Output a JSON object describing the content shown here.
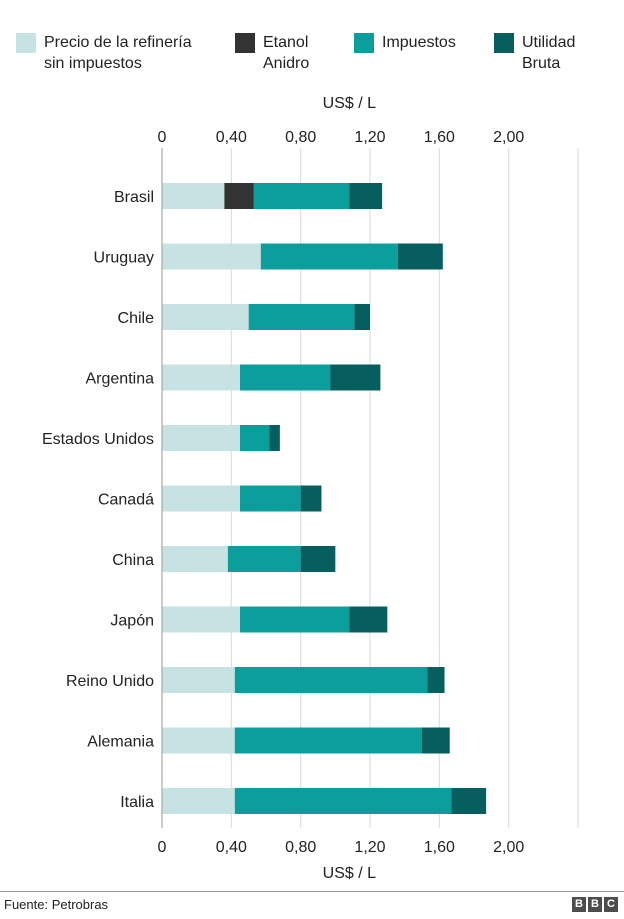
{
  "legend": [
    {
      "label": "Precio de la refinería\nsin impuestos",
      "color": "#c7e2e2"
    },
    {
      "label": "Etanol\nAnidro",
      "color": "#333333"
    },
    {
      "label": "Impuestos",
      "color": "#0c9e9c"
    },
    {
      "label": "Utilidad\nBruta",
      "color": "#065f5e"
    }
  ],
  "footer": {
    "source": "Fuente: Petrobras",
    "logo": [
      "B",
      "B",
      "C"
    ]
  },
  "chart_data": {
    "type": "bar",
    "orientation": "horizontal",
    "stacked": true,
    "xlabel": "US$ / L",
    "xlim": [
      0,
      2.4
    ],
    "ticks": [
      0,
      0.4,
      0.8,
      1.2,
      1.6,
      2.0
    ],
    "tick_labels": [
      "0",
      "0,40",
      "0,80",
      "1,20",
      "1,60",
      "2,00"
    ],
    "grid": true,
    "legend_position": "top",
    "categories": [
      "Brasil",
      "Uruguay",
      "Chile",
      "Argentina",
      "Estados Unidos",
      "Canadá",
      "China",
      "Japón",
      "Reino Unido",
      "Alemania",
      "Italia"
    ],
    "series": [
      {
        "name": "Precio de la refinería sin impuestos",
        "color": "#c7e2e2",
        "values": [
          0.36,
          0.57,
          0.5,
          0.45,
          0.45,
          0.45,
          0.38,
          0.45,
          0.42,
          0.42,
          0.42
        ]
      },
      {
        "name": "Etanol Anidro",
        "color": "#333333",
        "values": [
          0.17,
          0,
          0,
          0,
          0,
          0,
          0,
          0,
          0,
          0,
          0
        ]
      },
      {
        "name": "Impuestos",
        "color": "#0c9e9c",
        "values": [
          0.55,
          0.79,
          0.61,
          0.52,
          0.17,
          0.35,
          0.42,
          0.63,
          1.11,
          1.08,
          1.25
        ]
      },
      {
        "name": "Utilidad Bruta",
        "color": "#065f5e",
        "values": [
          0.19,
          0.26,
          0.09,
          0.29,
          0.06,
          0.12,
          0.2,
          0.22,
          0.1,
          0.16,
          0.2
        ]
      }
    ]
  }
}
